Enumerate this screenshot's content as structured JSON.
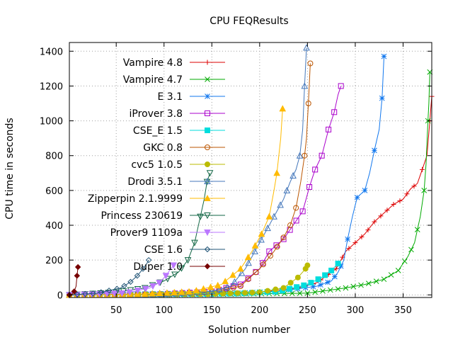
{
  "chart_data": {
    "type": "line",
    "title": "CPU FEQResults",
    "xlabel": "Solution number",
    "ylabel": "CPU time in seconds",
    "xlim": [
      1,
      380
    ],
    "ylim": [
      -15,
      1450
    ],
    "xticks": [
      50,
      100,
      150,
      200,
      250,
      300,
      350
    ],
    "yticks": [
      0,
      200,
      400,
      600,
      800,
      1000,
      1200,
      1400
    ],
    "grid": true,
    "legend_position": "top-left",
    "series": [
      {
        "name": "Vampire 4.8",
        "color": "#dd0000",
        "marker": "plus",
        "points": [
          [
            1,
            0
          ],
          [
            100,
            3
          ],
          [
            200,
            15
          ],
          [
            240,
            40
          ],
          [
            260,
            70
          ],
          [
            280,
            150
          ],
          [
            290,
            250
          ],
          [
            300,
            300
          ],
          [
            310,
            350
          ],
          [
            320,
            420
          ],
          [
            330,
            470
          ],
          [
            340,
            520
          ],
          [
            350,
            550
          ],
          [
            358,
            610
          ],
          [
            365,
            640
          ],
          [
            370,
            720
          ],
          [
            375,
            800
          ],
          [
            378,
            1000
          ],
          [
            380,
            1140
          ]
        ]
      },
      {
        "name": "Vampire 4.7",
        "color": "#00aa00",
        "marker": "x",
        "points": [
          [
            1,
            0
          ],
          [
            150,
            3
          ],
          [
            250,
            10
          ],
          [
            290,
            40
          ],
          [
            310,
            60
          ],
          [
            330,
            90
          ],
          [
            345,
            140
          ],
          [
            355,
            220
          ],
          [
            362,
            300
          ],
          [
            368,
            450
          ],
          [
            372,
            600
          ],
          [
            374,
            750
          ],
          [
            376,
            1000
          ],
          [
            377,
            1100
          ],
          [
            378,
            1280
          ]
        ]
      },
      {
        "name": "E 3.1",
        "color": "#1177ee",
        "marker": "star",
        "points": [
          [
            1,
            0
          ],
          [
            150,
            5
          ],
          [
            220,
            20
          ],
          [
            260,
            50
          ],
          [
            275,
            80
          ],
          [
            282,
            130
          ],
          [
            288,
            200
          ],
          [
            292,
            320
          ],
          [
            297,
            450
          ],
          [
            302,
            560
          ],
          [
            310,
            600
          ],
          [
            315,
            700
          ],
          [
            320,
            830
          ],
          [
            325,
            950
          ],
          [
            328,
            1130
          ],
          [
            330,
            1370
          ]
        ]
      },
      {
        "name": "iProver 3.8",
        "color": "#aa00cc",
        "marker": "square-open",
        "points": [
          [
            1,
            0
          ],
          [
            100,
            5
          ],
          [
            150,
            20
          ],
          [
            180,
            60
          ],
          [
            200,
            150
          ],
          [
            210,
            250
          ],
          [
            225,
            320
          ],
          [
            235,
            400
          ],
          [
            245,
            480
          ],
          [
            252,
            620
          ],
          [
            258,
            720
          ],
          [
            265,
            800
          ],
          [
            272,
            950
          ],
          [
            278,
            1050
          ],
          [
            282,
            1150
          ],
          [
            285,
            1200
          ]
        ]
      },
      {
        "name": "CSE_E 1.5",
        "color": "#00dddd",
        "marker": "square-filled",
        "points": [
          [
            1,
            0
          ],
          [
            180,
            8
          ],
          [
            220,
            20
          ],
          [
            250,
            60
          ],
          [
            265,
            100
          ],
          [
            275,
            140
          ],
          [
            282,
            180
          ]
        ]
      },
      {
        "name": "GKC 0.8",
        "color": "#bb5500",
        "marker": "circle-open",
        "points": [
          [
            1,
            0
          ],
          [
            100,
            5
          ],
          [
            150,
            15
          ],
          [
            180,
            50
          ],
          [
            200,
            150
          ],
          [
            215,
            250
          ],
          [
            225,
            330
          ],
          [
            232,
            400
          ],
          [
            238,
            500
          ],
          [
            243,
            650
          ],
          [
            247,
            800
          ],
          [
            249,
            900
          ],
          [
            251,
            1100
          ],
          [
            253,
            1330
          ]
        ]
      },
      {
        "name": "cvc5 1.0.5",
        "color": "#bbbb00",
        "marker": "circle-filled",
        "points": [
          [
            1,
            0
          ],
          [
            150,
            5
          ],
          [
            200,
            15
          ],
          [
            225,
            40
          ],
          [
            240,
            100
          ],
          [
            248,
            150
          ],
          [
            250,
            170
          ]
        ]
      },
      {
        "name": "Drodi 3.5.1",
        "color": "#4477bb",
        "marker": "triangle-open",
        "points": [
          [
            1,
            0
          ],
          [
            100,
            5
          ],
          [
            150,
            20
          ],
          [
            170,
            50
          ],
          [
            185,
            150
          ],
          [
            195,
            250
          ],
          [
            205,
            350
          ],
          [
            215,
            450
          ],
          [
            225,
            550
          ],
          [
            232,
            650
          ],
          [
            238,
            720
          ],
          [
            242,
            800
          ],
          [
            245,
            950
          ],
          [
            247,
            1200
          ],
          [
            249,
            1420
          ]
        ]
      },
      {
        "name": "Zipperpin 2.1.9999",
        "color": "#ffbb00",
        "marker": "triangle-filled",
        "points": [
          [
            1,
            0
          ],
          [
            80,
            5
          ],
          [
            130,
            20
          ],
          [
            160,
            60
          ],
          [
            180,
            150
          ],
          [
            192,
            250
          ],
          [
            202,
            350
          ],
          [
            210,
            450
          ],
          [
            215,
            600
          ],
          [
            218,
            700
          ],
          [
            222,
            900
          ],
          [
            224,
            1070
          ]
        ]
      },
      {
        "name": "Princess 230619",
        "color": "#116644",
        "marker": "triangle-down-open",
        "points": [
          [
            1,
            0
          ],
          [
            50,
            15
          ],
          [
            80,
            40
          ],
          [
            100,
            80
          ],
          [
            115,
            130
          ],
          [
            125,
            200
          ],
          [
            132,
            300
          ],
          [
            138,
            450
          ],
          [
            142,
            550
          ],
          [
            145,
            650
          ],
          [
            148,
            700
          ]
        ]
      },
      {
        "name": "Prover9 1109a",
        "color": "#bb77ff",
        "marker": "triangle-down-filled",
        "points": [
          [
            1,
            0
          ],
          [
            60,
            10
          ],
          [
            85,
            40
          ],
          [
            95,
            70
          ],
          [
            102,
            110
          ],
          [
            107,
            150
          ],
          [
            110,
            170
          ]
        ]
      },
      {
        "name": "CSE 1.6",
        "color": "#225577",
        "marker": "diamond-open",
        "points": [
          [
            1,
            0
          ],
          [
            30,
            10
          ],
          [
            55,
            40
          ],
          [
            65,
            75
          ],
          [
            72,
            110
          ],
          [
            78,
            150
          ],
          [
            82,
            180
          ],
          [
            84,
            200
          ]
        ]
      },
      {
        "name": "Duper 1.0",
        "color": "#770000",
        "marker": "diamond-filled",
        "points": [
          [
            1,
            0
          ],
          [
            4,
            5
          ],
          [
            6,
            20
          ],
          [
            8,
            50
          ],
          [
            9,
            110
          ],
          [
            10,
            160
          ]
        ]
      }
    ]
  }
}
